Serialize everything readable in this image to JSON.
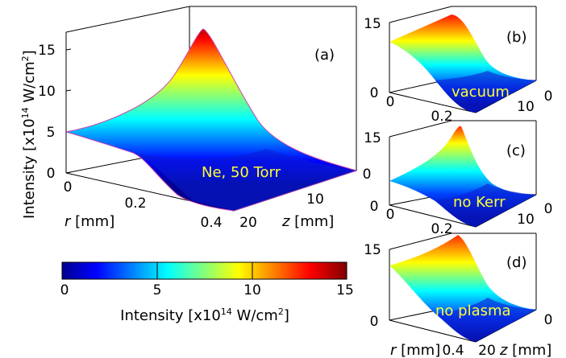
{
  "chart_data": [
    {
      "panel": "(a)",
      "type": "surface",
      "annotation": "Ne, 50 Torr",
      "ylabel": "Intensity [x10",
      "ylabel_exp": "14",
      "ylabel_unit": " W/cm",
      "ylabel_unit_exp": "2",
      "ylabel_end": "]",
      "xlabel_var": "r",
      "xlabel_unit": " [mm]",
      "zlabel_var": "z",
      "zlabel_unit": " [mm]",
      "zticks": [
        "0",
        "5",
        "10",
        "15"
      ],
      "rticks": [
        "0",
        "0.2",
        "0.4"
      ],
      "zaxis_ticks": [
        "0",
        "10",
        "20"
      ],
      "zlim": [
        0,
        17
      ],
      "rlim": [
        0,
        0.4
      ],
      "zrange": [
        0,
        20
      ],
      "peak_intensity": 15.5,
      "edge_profile": [
        5,
        5.2,
        5.6,
        6.2,
        7.2,
        8.6,
        10.3,
        12.5,
        15.0,
        15.5
      ],
      "colormap": "jet"
    },
    {
      "panel": "(b)",
      "type": "surface",
      "annotation": "vacuum",
      "zticks": [
        "0",
        "15"
      ],
      "rticks": [
        "0",
        "0.2"
      ],
      "zaxis_ticks": [
        "0",
        "10"
      ],
      "peak_intensity": 13.5
    },
    {
      "panel": "(c)",
      "type": "surface",
      "annotation": "no Kerr",
      "zticks": [
        "0",
        "15"
      ],
      "rticks": [
        "0",
        "0.2"
      ],
      "zaxis_ticks": [
        "0",
        "10"
      ],
      "peak_intensity": 14.5
    },
    {
      "panel": "(d)",
      "type": "surface",
      "annotation": "no plasma",
      "zticks": [
        "0",
        "15"
      ],
      "rticks": [
        "0.4"
      ],
      "zaxis_ticks": [
        "20",
        "0"
      ],
      "xlabel_var": "r",
      "xlabel_unit": " [mm]",
      "zlabel_var": "z",
      "zlabel_unit": " [mm]",
      "peak_intensity": 15.5
    }
  ],
  "colorbar": {
    "ticks": [
      "0",
      "5",
      "10",
      "15"
    ],
    "range": [
      0,
      15
    ],
    "label": "Intensity [x10",
    "label_exp": "14",
    "label_unit": " W/cm",
    "label_unit_exp": "2",
    "label_end": "]",
    "colormap": "jet"
  }
}
